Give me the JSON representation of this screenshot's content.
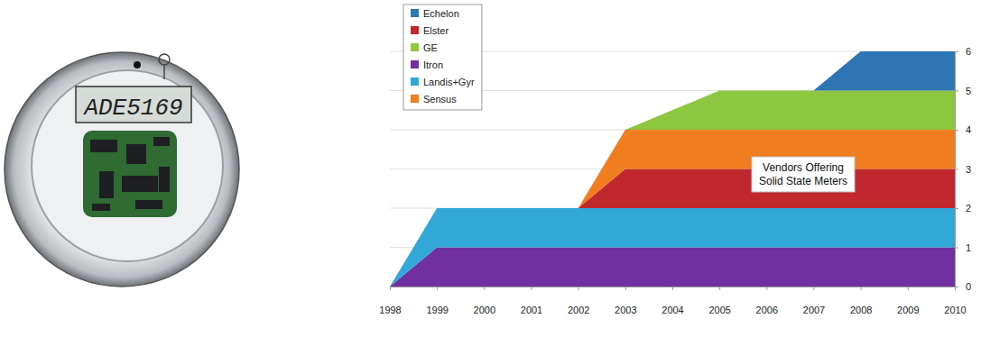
{
  "chart_data": {
    "type": "area",
    "stacked": true,
    "annotation": "Vendors Offering Solid State Meters",
    "x": [
      1998,
      1999,
      2000,
      2001,
      2002,
      2003,
      2004,
      2005,
      2006,
      2007,
      2008,
      2009,
      2010
    ],
    "xlim": [
      1998,
      2010
    ],
    "xticks": [
      1998,
      1999,
      2000,
      2001,
      2002,
      2003,
      2004,
      2005,
      2006,
      2007,
      2008,
      2009,
      2010
    ],
    "ylim": [
      0,
      6
    ],
    "yticks": [
      0,
      1,
      2,
      3,
      4,
      5,
      6
    ],
    "grid": true,
    "legend": "upper left",
    "series": [
      {
        "name": "Itron",
        "color": "#7030a0",
        "values": [
          0,
          1,
          1,
          1,
          1,
          1,
          1,
          1,
          1,
          1,
          1,
          1,
          1
        ]
      },
      {
        "name": "Landis+Gyr",
        "color": "#31a8d8",
        "values": [
          0,
          1,
          1,
          1,
          1,
          1,
          1,
          1,
          1,
          1,
          1,
          1,
          1
        ]
      },
      {
        "name": "Elster",
        "color": "#c0282d",
        "values": [
          0,
          0,
          0,
          0,
          0,
          1,
          1,
          1,
          1,
          1,
          1,
          1,
          1
        ]
      },
      {
        "name": "Sensus",
        "color": "#f07d1f",
        "values": [
          0,
          0,
          0,
          0,
          0,
          1,
          1,
          1,
          1,
          1,
          1,
          1,
          1
        ]
      },
      {
        "name": "GE",
        "color": "#8dc63f",
        "values": [
          0,
          0,
          0,
          0,
          0,
          0,
          0.5,
          1,
          1,
          1,
          1,
          1,
          1
        ]
      },
      {
        "name": "Echelon",
        "color": "#2e75b6",
        "values": [
          0,
          0,
          0,
          0,
          0,
          0,
          0,
          0,
          0,
          0,
          1,
          1,
          1
        ]
      }
    ]
  },
  "meter": {
    "display": "ADE5169"
  }
}
